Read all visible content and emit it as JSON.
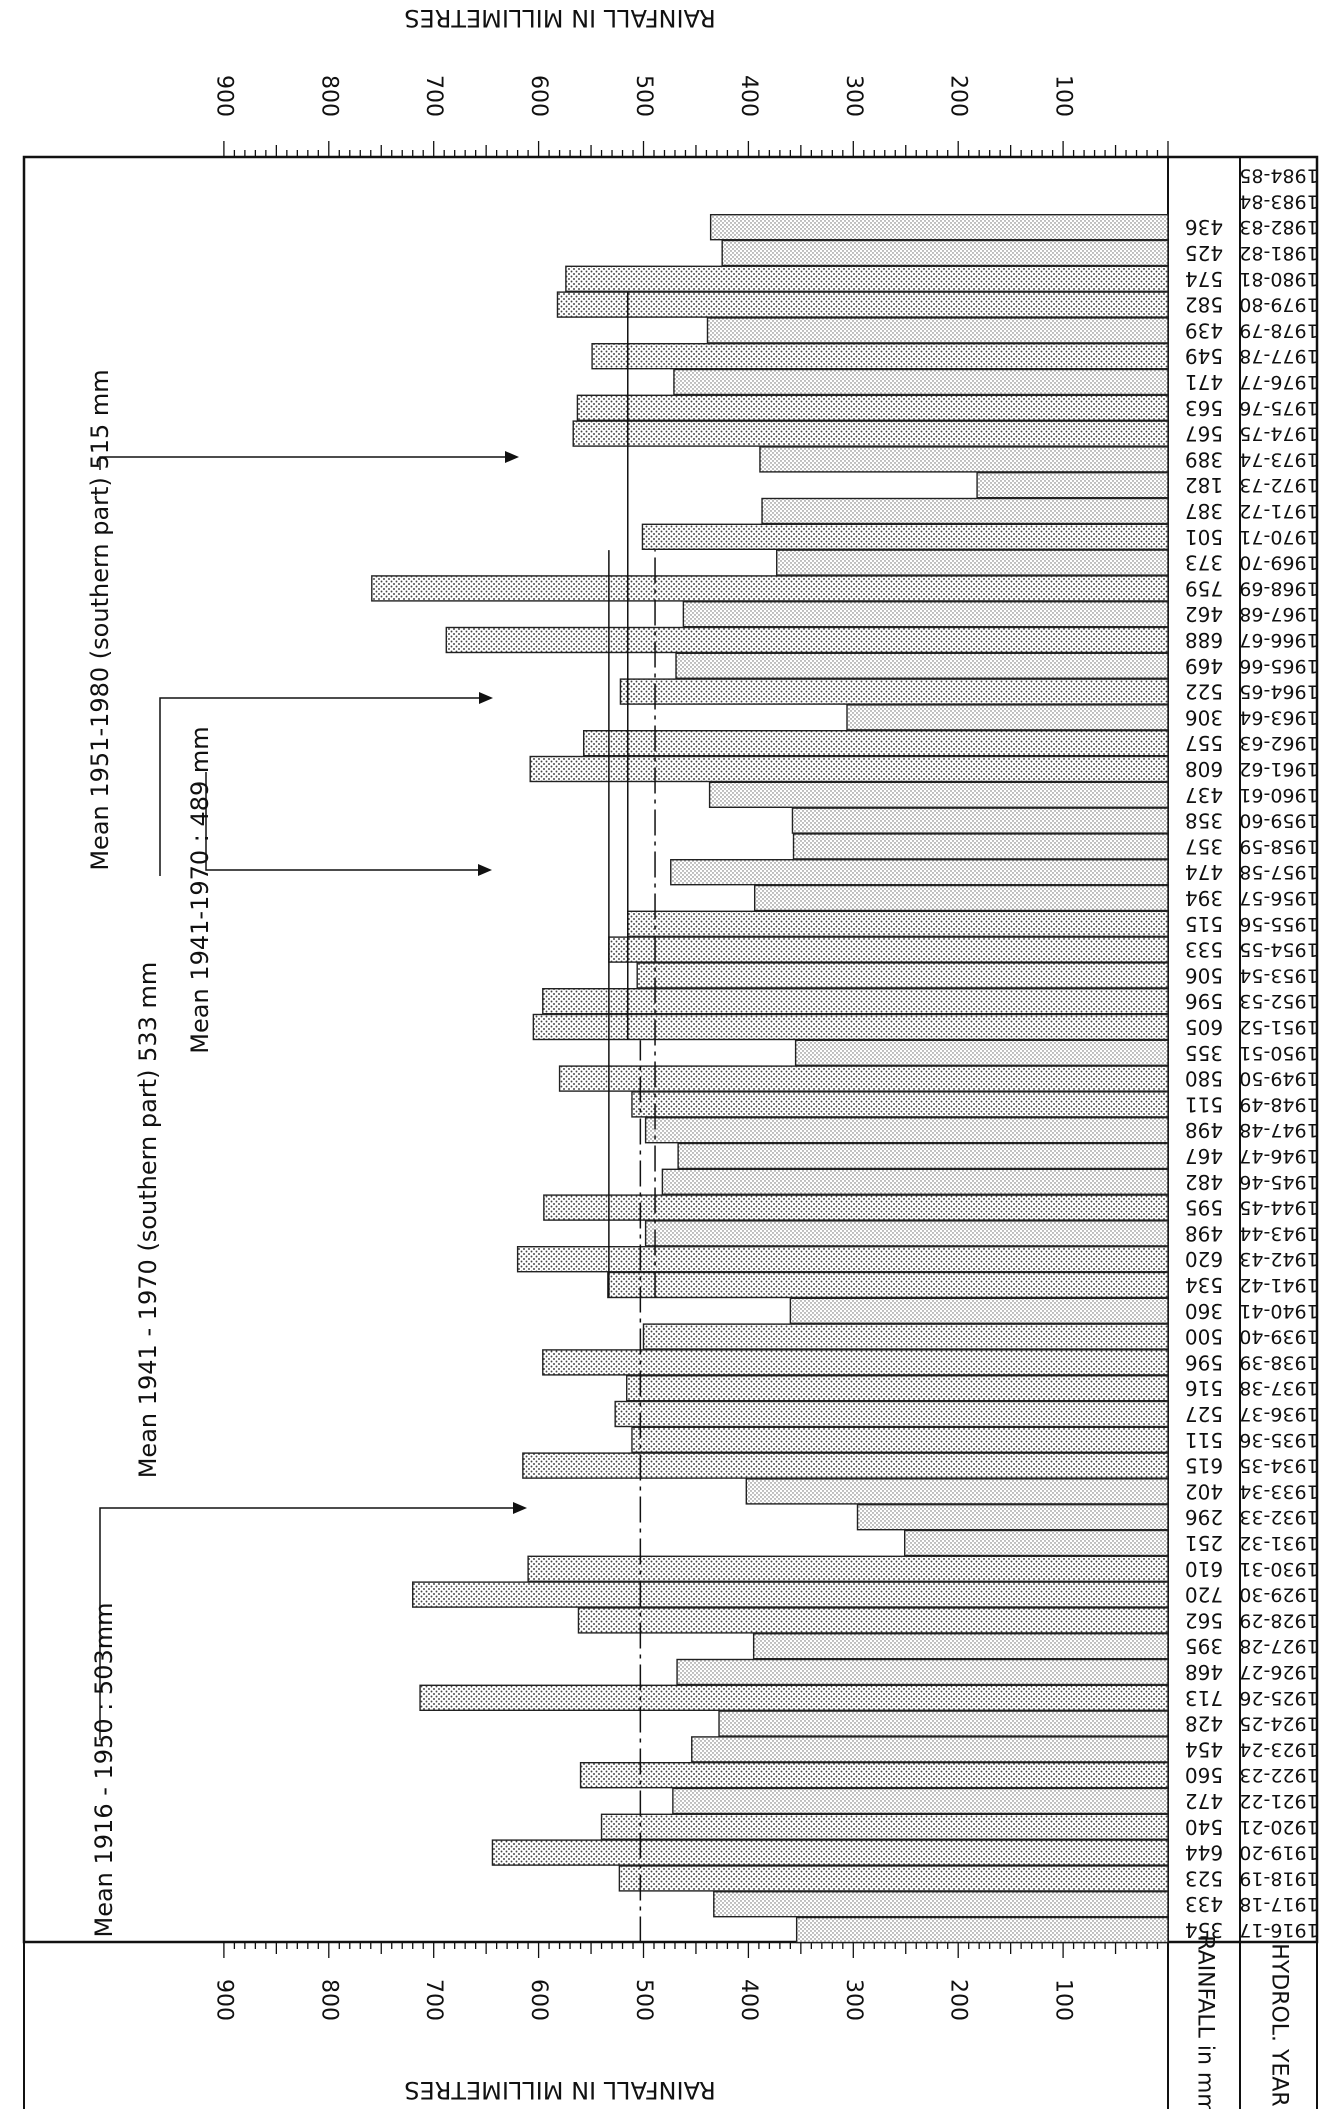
{
  "chart_data": {
    "type": "bar",
    "orientation": "horizontal",
    "xlabel": "RAINFALL IN MILLIMETRES",
    "xlim": [
      0,
      900
    ],
    "x_ticks": [
      100,
      200,
      300,
      400,
      500,
      600,
      700,
      800,
      900
    ],
    "table_headers": {
      "rainfall": "RAINFALL in mm",
      "year": "HYDROL. YEAR"
    },
    "categories": [
      "1916-17",
      "1917-18",
      "1918-19",
      "1919-20",
      "1920-21",
      "1921-22",
      "1922-23",
      "1923-24",
      "1924-25",
      "1925-26",
      "1926-27",
      "1927-28",
      "1928-29",
      "1929-30",
      "1930-31",
      "1931-32",
      "1932-33",
      "1933-34",
      "1934-35",
      "1935-36",
      "1936-37",
      "1937-38",
      "1938-39",
      "1939-40",
      "1940-41",
      "1941-42",
      "1942-43",
      "1943-44",
      "1944-45",
      "1945-46",
      "1946-47",
      "1947-48",
      "1948-49",
      "1949-50",
      "1950-51",
      "1951-52",
      "1952-53",
      "1953-54",
      "1954-55",
      "1955-56",
      "1956-57",
      "1957-58",
      "1958-59",
      "1959-60",
      "1960-61",
      "1961-62",
      "1962-63",
      "1963-64",
      "1964-65",
      "1965-66",
      "1966-67",
      "1967-68",
      "1968-69",
      "1969-70",
      "1970-71",
      "1971-72",
      "1972-73",
      "1973-74",
      "1974-75",
      "1975-76",
      "1976-77",
      "1977-78",
      "1978-79",
      "1979-80",
      "1980-81",
      "1981-82",
      "1982-83",
      "1983-84",
      "1984-85"
    ],
    "values": [
      354,
      433,
      523,
      644,
      540,
      472,
      560,
      454,
      428,
      713,
      468,
      395,
      562,
      720,
      610,
      251,
      296,
      402,
      615,
      511,
      527,
      516,
      596,
      500,
      360,
      534,
      620,
      498,
      595,
      482,
      467,
      498,
      511,
      580,
      355,
      605,
      596,
      506,
      533,
      515,
      394,
      474,
      357,
      358,
      437,
      608,
      557,
      306,
      522,
      469,
      688,
      462,
      759,
      373,
      501,
      387,
      182,
      389,
      567,
      563,
      471,
      549,
      439,
      582,
      574,
      425,
      436,
      null,
      null
    ],
    "value_labels": [
      "354",
      "433",
      "523",
      "644",
      "540",
      "472",
      "560",
      "454",
      "428",
      "713",
      "468",
      "395",
      "562",
      "720",
      "610",
      "251",
      "296",
      "402",
      "615",
      "511",
      "527",
      "516",
      "596",
      "500",
      "360",
      "534",
      "620",
      "498",
      "595",
      "482",
      "467",
      "498",
      "511",
      "580",
      "355",
      "605",
      "596",
      "506",
      "533",
      "515",
      "394",
      "474",
      "357",
      "358",
      "437",
      "608",
      "557",
      "306",
      "522",
      "469",
      "688",
      "462",
      "759",
      "373",
      "501",
      "387",
      "182",
      "389",
      "567",
      "563",
      "471",
      "549",
      "439",
      "582",
      "574",
      "425",
      "436",
      "",
      ""
    ],
    "mean_lines": [
      {
        "label": "Mean 1916 - 1950 : 503mm",
        "value": 503,
        "from": "1916-17",
        "to": "1950-51",
        "style": "dash-dot"
      },
      {
        "label": "Mean 1941 - 1970 (southern part) 533 mm",
        "value": 533,
        "from": "1941-42",
        "to": "1969-70",
        "style": "solid"
      },
      {
        "label": "Mean 1941-1970 : 489 mm",
        "value": 489,
        "from": "1941-42",
        "to": "1969-70",
        "style": "dash-dot"
      },
      {
        "label": "Mean 1951-1980 (southern part) 515 mm",
        "value": 515,
        "from": "1951-52",
        "to": "1979-80",
        "style": "solid"
      }
    ],
    "grid": false,
    "legend": "none"
  }
}
